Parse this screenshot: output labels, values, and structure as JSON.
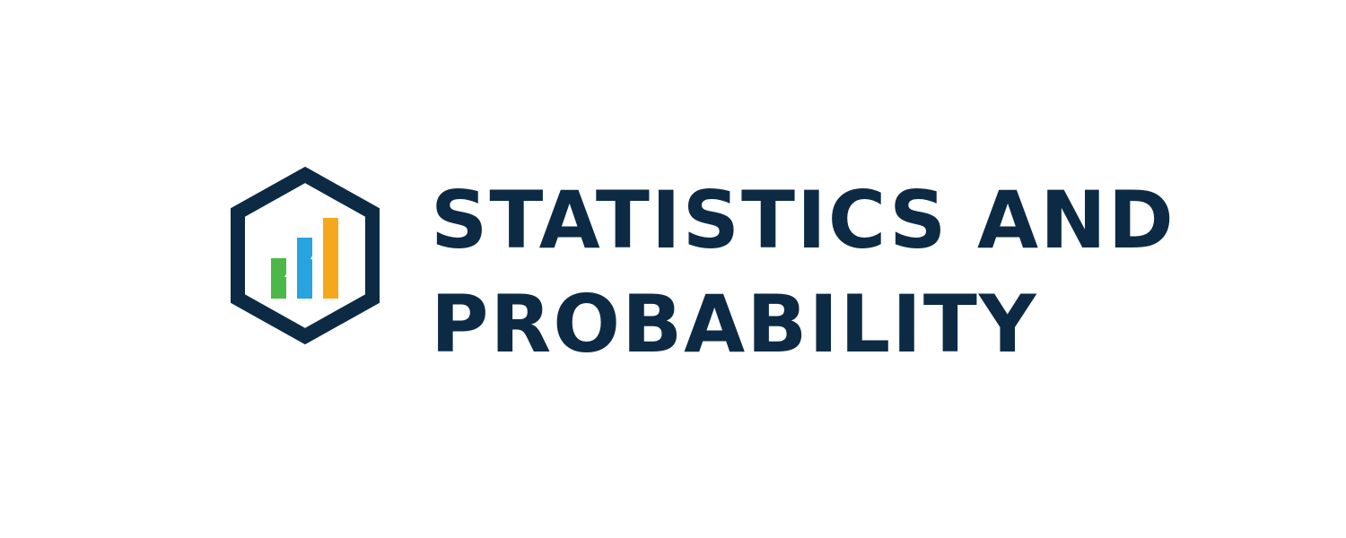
{
  "brand": {
    "title_line_1": "STATISTICS AND",
    "title_line_2": "PROBABILITY",
    "icon": "hexagon-bar-chart-icon",
    "colors": {
      "text": "#0d2a45",
      "hexagon": "#0d2a45",
      "bar_green": "#4cb848",
      "bar_blue": "#29a3e0",
      "bar_orange": "#f6a81c",
      "arrow": "#ffffff",
      "background": "#ffffff"
    }
  }
}
